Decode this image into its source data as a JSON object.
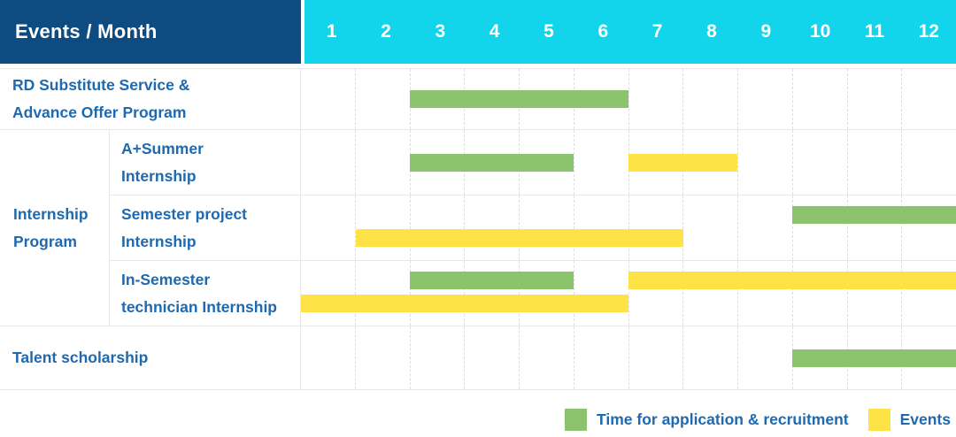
{
  "title_cell": "Events / Month",
  "colors": {
    "header_bg": "#0d4b80",
    "month_strip_bg": "#12d5ec",
    "green": "#8cc46d",
    "yellow": "#fde345",
    "label_text": "#1e69af"
  },
  "legend": {
    "green_label": "Time for application & recruitment",
    "yellow_label": "Events"
  },
  "chart_data": {
    "type": "gantt",
    "title": "Events / Month",
    "x_unit": "month",
    "x_ticks": [
      "1",
      "2",
      "3",
      "4",
      "5",
      "6",
      "7",
      "8",
      "9",
      "10",
      "11",
      "12"
    ],
    "x_range": [
      1,
      12
    ],
    "grid": "dashed-vertical-month-lines",
    "legend_position": "bottom-right",
    "bar_kinds": {
      "green": "Time for application & recruitment",
      "yellow": "Events"
    },
    "tasks": [
      {
        "label": "RD Substitute Service &\nAdvance Offer Program",
        "group": null,
        "bars": [
          {
            "color": "green",
            "kind": "Time for application & recruitment",
            "start_month": 3,
            "end_month": 6,
            "lane": 0
          }
        ]
      },
      {
        "label": "A+Summer\nInternship",
        "group": "Internship Program",
        "bars": [
          {
            "color": "green",
            "kind": "Time for application & recruitment",
            "start_month": 3,
            "end_month": 5,
            "lane": 0
          },
          {
            "color": "yellow",
            "kind": "Events",
            "start_month": 7,
            "end_month": 8,
            "lane": 0
          }
        ]
      },
      {
        "label": "Semester project\nInternship",
        "group": "Internship Program",
        "bars": [
          {
            "color": "green",
            "kind": "Time for application & recruitment",
            "start_month": 10,
            "end_month": 12,
            "lane": 0
          },
          {
            "color": "yellow",
            "kind": "Events",
            "start_month": 2,
            "end_month": 7,
            "lane": 1
          }
        ]
      },
      {
        "label": "In-Semester\ntechnician Internship",
        "group": "Internship Program",
        "bars": [
          {
            "color": "green",
            "kind": "Time for application & recruitment",
            "start_month": 3,
            "end_month": 5,
            "lane": 0
          },
          {
            "color": "yellow",
            "kind": "Events",
            "start_month": 7,
            "end_month": 12,
            "lane": 0
          },
          {
            "color": "yellow",
            "kind": "Events",
            "start_month": 1,
            "end_month": 6,
            "lane": 1
          }
        ]
      },
      {
        "label": "Talent scholarship",
        "group": null,
        "bars": [
          {
            "color": "green",
            "kind": "Time for application & recruitment",
            "start_month": 10,
            "end_month": 12,
            "lane": 0
          }
        ]
      }
    ],
    "groups": [
      {
        "label": "Internship\nProgram",
        "task_indexes": [
          1,
          2,
          3
        ]
      }
    ]
  }
}
